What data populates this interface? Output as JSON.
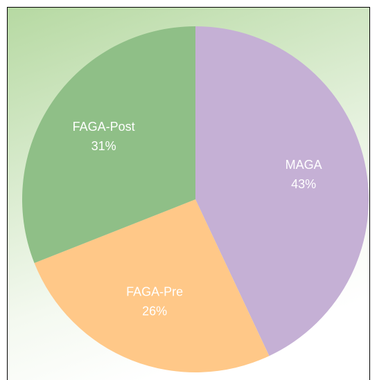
{
  "chart_data": {
    "type": "pie",
    "categories": [
      "MAGA",
      "FAGA-Pre",
      "FAGA-Post"
    ],
    "values": [
      43,
      26,
      31
    ],
    "value_labels": [
      "43%",
      "26%",
      "31%"
    ],
    "colors": [
      "#c5b0d5",
      "#ffc888",
      "#8fbf87"
    ]
  }
}
